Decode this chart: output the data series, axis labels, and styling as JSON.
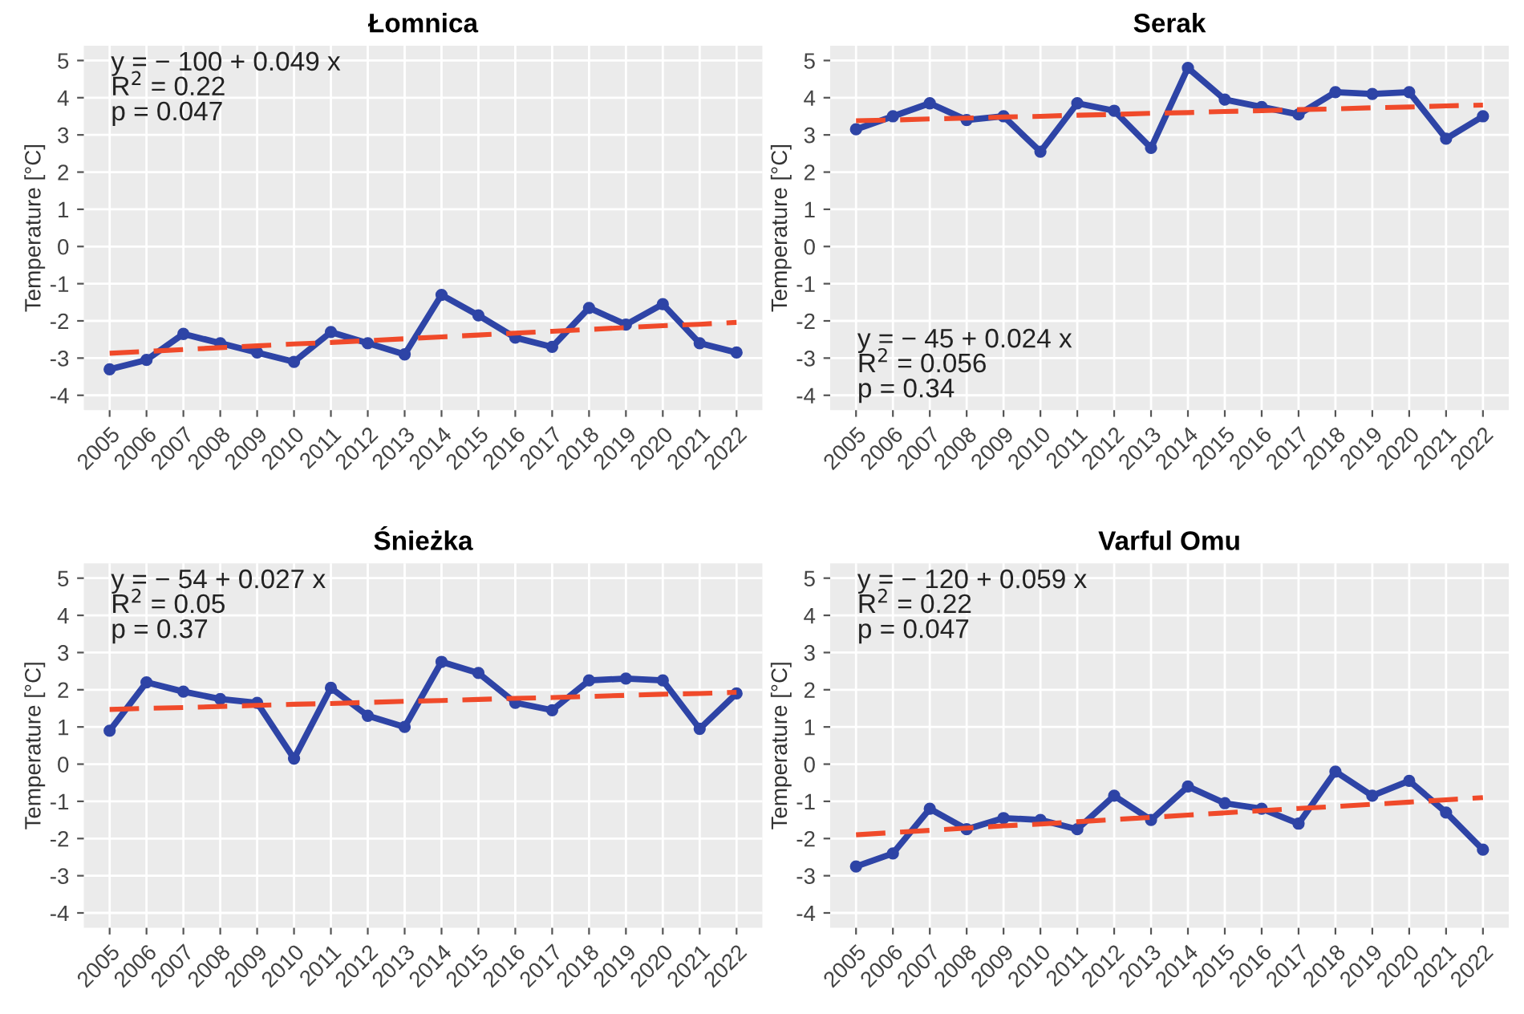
{
  "chart_data": [
    {
      "type": "line",
      "title": "Łomnica",
      "ylabel": "Temperature [°C]",
      "categories": [
        "2005",
        "2006",
        "2007",
        "2008",
        "2009",
        "2010",
        "2011",
        "2012",
        "2013",
        "2014",
        "2015",
        "2016",
        "2017",
        "2018",
        "2019",
        "2020",
        "2021",
        "2022"
      ],
      "ylim": [
        -4.4,
        5.4
      ],
      "yticks": [
        -4,
        -3,
        -2,
        -1,
        0,
        1,
        2,
        3,
        4,
        5
      ],
      "grid": true,
      "annotations": [
        "y = − 100 + 0.049 x",
        "R$^{2}$ = 0.22",
        "p = 0.047"
      ],
      "series": [
        {
          "color": "#2e44a6",
          "marker": "circle",
          "line_style": "solid",
          "values": [
            -3.3,
            -3.05,
            -2.35,
            -2.6,
            -2.85,
            -3.1,
            -2.3,
            -2.6,
            -2.9,
            -1.3,
            -1.85,
            -2.45,
            -2.7,
            -1.65,
            -2.1,
            -1.55,
            -2.6,
            -2.85
          ]
        },
        {
          "color": "#f04a2a",
          "marker": "none",
          "line_style": "dashed",
          "values": [
            -2.87,
            -2.82,
            -2.77,
            -2.72,
            -2.67,
            -2.62,
            -2.58,
            -2.53,
            -2.48,
            -2.43,
            -2.38,
            -2.33,
            -2.28,
            -2.23,
            -2.18,
            -2.13,
            -2.09,
            -2.04
          ]
        }
      ]
    },
    {
      "type": "line",
      "title": "Serak",
      "ylabel": "Temperature [°C]",
      "categories": [
        "2005",
        "2006",
        "2007",
        "2008",
        "2009",
        "2010",
        "2011",
        "2012",
        "2013",
        "2014",
        "2015",
        "2016",
        "2017",
        "2018",
        "2019",
        "2020",
        "2021",
        "2022"
      ],
      "ylim": [
        -4.4,
        5.4
      ],
      "yticks": [
        -4,
        -3,
        -2,
        -1,
        0,
        1,
        2,
        3,
        4,
        5
      ],
      "grid": true,
      "annotations": [
        "y = − 45 + 0.024 x",
        "R$^{2}$ = 0.056",
        "p = 0.34"
      ],
      "series": [
        {
          "color": "#2e44a6",
          "marker": "circle",
          "line_style": "solid",
          "values": [
            3.15,
            3.5,
            3.85,
            3.4,
            3.5,
            2.55,
            3.85,
            3.65,
            2.65,
            4.8,
            3.95,
            3.75,
            3.55,
            4.15,
            4.1,
            4.15,
            2.9,
            3.5
          ]
        },
        {
          "color": "#f04a2a",
          "marker": "none",
          "line_style": "dashed",
          "values": [
            3.38,
            3.4,
            3.43,
            3.45,
            3.48,
            3.5,
            3.53,
            3.55,
            3.58,
            3.6,
            3.63,
            3.65,
            3.68,
            3.7,
            3.73,
            3.75,
            3.78,
            3.8
          ]
        }
      ]
    },
    {
      "type": "line",
      "title": "Śnieżka",
      "ylabel": "Temperature [°C]",
      "categories": [
        "2005",
        "2006",
        "2007",
        "2008",
        "2009",
        "2010",
        "2011",
        "2012",
        "2013",
        "2014",
        "2015",
        "2016",
        "2017",
        "2018",
        "2019",
        "2020",
        "2021",
        "2022"
      ],
      "ylim": [
        -4.4,
        5.4
      ],
      "yticks": [
        -4,
        -3,
        -2,
        -1,
        0,
        1,
        2,
        3,
        4,
        5
      ],
      "grid": true,
      "annotations": [
        "y = − 54 + 0.027 x",
        "R$^{2}$ = 0.05",
        "p = 0.37"
      ],
      "series": [
        {
          "color": "#2e44a6",
          "marker": "circle",
          "line_style": "solid",
          "values": [
            0.9,
            2.2,
            1.95,
            1.75,
            1.65,
            0.15,
            2.05,
            1.3,
            1.0,
            2.75,
            2.45,
            1.65,
            1.45,
            2.25,
            2.3,
            2.25,
            0.95,
            1.9
          ]
        },
        {
          "color": "#f04a2a",
          "marker": "none",
          "line_style": "dashed",
          "values": [
            1.47,
            1.5,
            1.52,
            1.55,
            1.58,
            1.61,
            1.63,
            1.66,
            1.69,
            1.71,
            1.74,
            1.77,
            1.79,
            1.82,
            1.85,
            1.88,
            1.9,
            1.93
          ]
        }
      ]
    },
    {
      "type": "line",
      "title": "Varful Omu",
      "ylabel": "Temperature [°C]",
      "categories": [
        "2005",
        "2006",
        "2007",
        "2008",
        "2009",
        "2010",
        "2011",
        "2012",
        "2013",
        "2014",
        "2015",
        "2016",
        "2017",
        "2018",
        "2019",
        "2020",
        "2021",
        "2022"
      ],
      "ylim": [
        -4.4,
        5.4
      ],
      "yticks": [
        -4,
        -3,
        -2,
        -1,
        0,
        1,
        2,
        3,
        4,
        5
      ],
      "grid": true,
      "annotations": [
        "y = − 120 + 0.059 x",
        "R$^{2}$ = 0.22",
        "p = 0.047"
      ],
      "series": [
        {
          "color": "#2e44a6",
          "marker": "circle",
          "line_style": "solid",
          "values": [
            -2.75,
            -2.4,
            -1.2,
            -1.75,
            -1.45,
            -1.5,
            -1.75,
            -0.85,
            -1.5,
            -0.6,
            -1.05,
            -1.2,
            -1.6,
            -0.2,
            -0.85,
            -0.45,
            -1.3,
            -2.3
          ]
        },
        {
          "color": "#f04a2a",
          "marker": "none",
          "line_style": "dashed",
          "values": [
            -1.9,
            -1.84,
            -1.78,
            -1.72,
            -1.66,
            -1.61,
            -1.55,
            -1.49,
            -1.43,
            -1.37,
            -1.31,
            -1.25,
            -1.19,
            -1.14,
            -1.08,
            -1.02,
            -0.96,
            -0.9
          ]
        }
      ]
    }
  ]
}
